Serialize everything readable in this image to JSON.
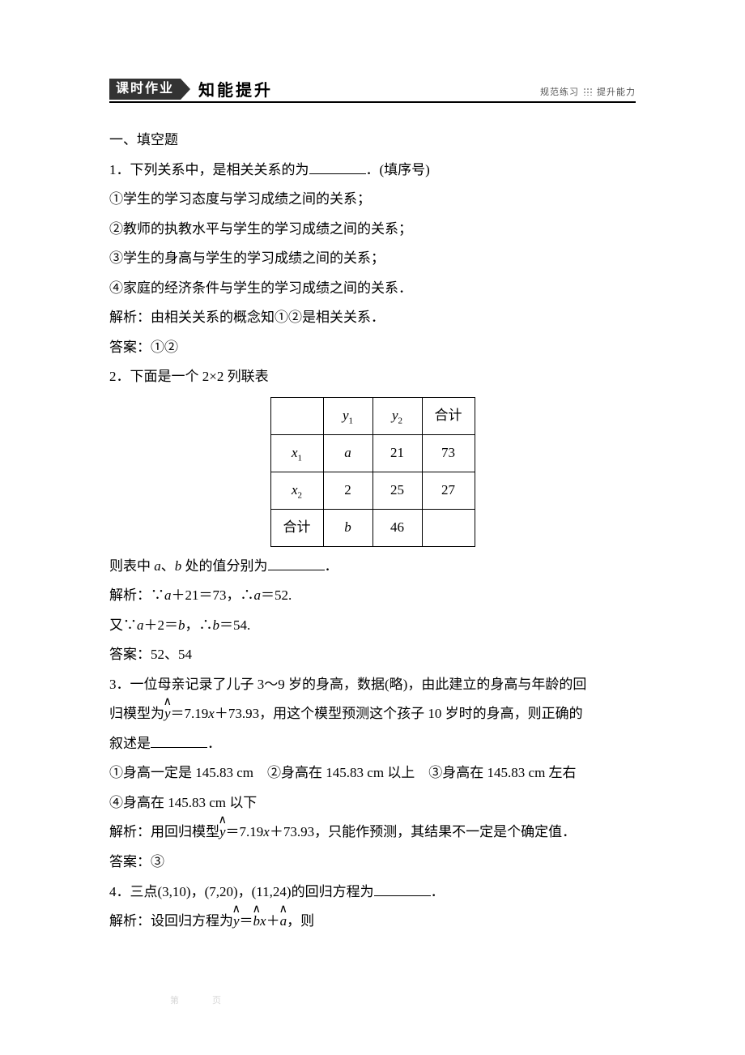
{
  "header": {
    "box_label": "课时作业",
    "title": "知能提升",
    "right_a": "规范练习",
    "right_b": "提升能力",
    "box_bg": "#333333",
    "box_fg": "#ffffff"
  },
  "section1_heading": "一、填空题",
  "q1": {
    "stem_a": "1．下列关系中，是相关关系的为",
    "stem_c": "．(填序号)",
    "opt1": "①学生的学习态度与学习成绩之间的关系；",
    "opt2": "②教师的执教水平与学生的学习成绩之间的关系；",
    "opt3": "③学生的身高与学生的学习成绩之间的关系；",
    "opt4": "④家庭的经济条件与学生的学习成绩之间的关系．",
    "sol": "解析：由相关关系的概念知①②是相关关系．",
    "ans": "答案：①②"
  },
  "q2": {
    "stem": "2．下面是一个 2×2 列联表",
    "table": {
      "header": [
        "",
        "y₁",
        "y₂",
        "合计"
      ],
      "row1": [
        "x₁",
        "a",
        "21",
        "73"
      ],
      "row2": [
        "x₂",
        "2",
        "25",
        "27"
      ],
      "row3": [
        "合计",
        "b",
        "46",
        ""
      ]
    },
    "tail_a": "则表中 ",
    "tail_b": "、",
    "tail_c": " 处的值分别为",
    "tail_e": "．",
    "var_a": "a",
    "var_b": "b",
    "sol1": "解析：∵a＋21＝73，∴a＝52.",
    "sol2": "又∵a＋2＝b，∴b＝54.",
    "ans": "答案：52、54"
  },
  "q3": {
    "line1": "3．一位母亲记录了儿子 3～9 岁的身高，数据(略)，由此建立的身高与年龄的回",
    "line2_a": "归模型为",
    "line2_b": "＝7.19x＋73.93，用这个模型预测这个孩子 10 岁时的身高，则正确的",
    "line3_a": "叙述是",
    "line3_c": "．",
    "opts": "①身高一定是 145.83 cm　②身高在 145.83 cm 以上　③身高在 145.83 cm 左右",
    "opt4": "④身高在 145.83 cm 以下",
    "sol_a": "解析：用回归模型",
    "sol_b": "＝7.19x＋73.93，只能作预测，其结果不一定是个确定值．",
    "ans": "答案：③",
    "yhat": "y"
  },
  "q4": {
    "stem_a": "4．三点(3,10)，(7,20)，(11,24)的回归方程为",
    "stem_c": "．",
    "sol_a": "解析：设回归方程为",
    "sol_b": "＝",
    "sol_c": "x＋",
    "sol_d": "，则",
    "yhat": "y",
    "bhat": "b",
    "ahat": "a"
  },
  "watermark1": "第　　　页",
  "watermark2": "　　　　　　"
}
